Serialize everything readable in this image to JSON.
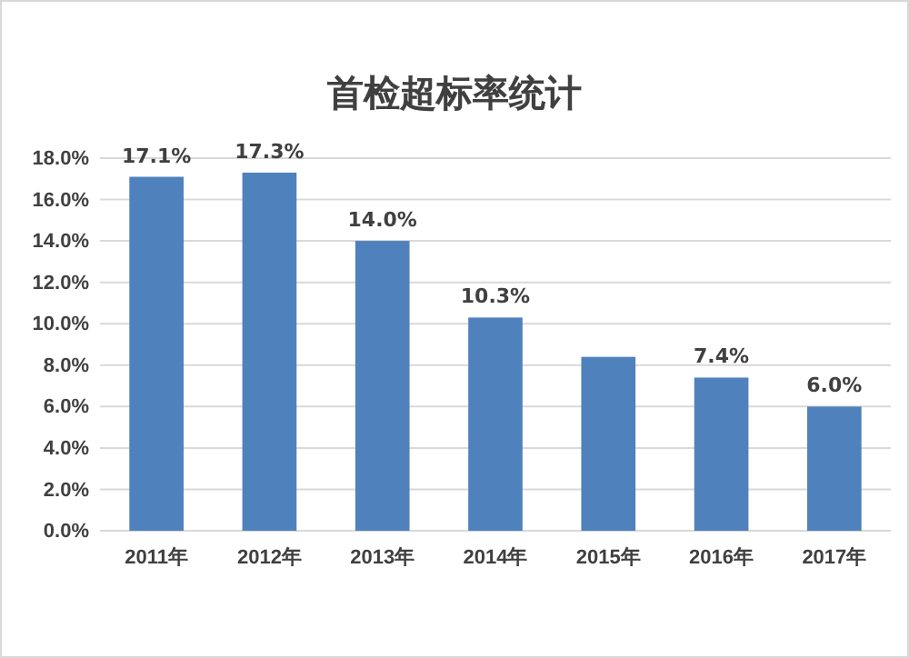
{
  "chart_data": {
    "type": "bar",
    "title": "首检超标率统计",
    "categories": [
      "2011年",
      "2012年",
      "2013年",
      "2014年",
      "2015年",
      "2016年",
      "2017年"
    ],
    "values": [
      17.1,
      17.3,
      14.0,
      10.3,
      8.4,
      7.4,
      6.0
    ],
    "value_labels": [
      "17.1%",
      "17.3%",
      "14.0%",
      "10.3%",
      null,
      "7.4%",
      "6.0%"
    ],
    "color": "#4f81bd",
    "ylim": [
      0,
      18
    ],
    "yticks": [
      {
        "value": 0,
        "label": "0.0%"
      },
      {
        "value": 2,
        "label": "2.0%"
      },
      {
        "value": 4,
        "label": "4.0%"
      },
      {
        "value": 6,
        "label": "6.0%"
      },
      {
        "value": 8,
        "label": "8.0%"
      },
      {
        "value": 10,
        "label": "10.0%"
      },
      {
        "value": 12,
        "label": "12.0%"
      },
      {
        "value": 14,
        "label": "14.0%"
      },
      {
        "value": 16,
        "label": "16.0%"
      },
      {
        "value": 18,
        "label": "18.0%"
      }
    ],
    "grid": "y"
  }
}
